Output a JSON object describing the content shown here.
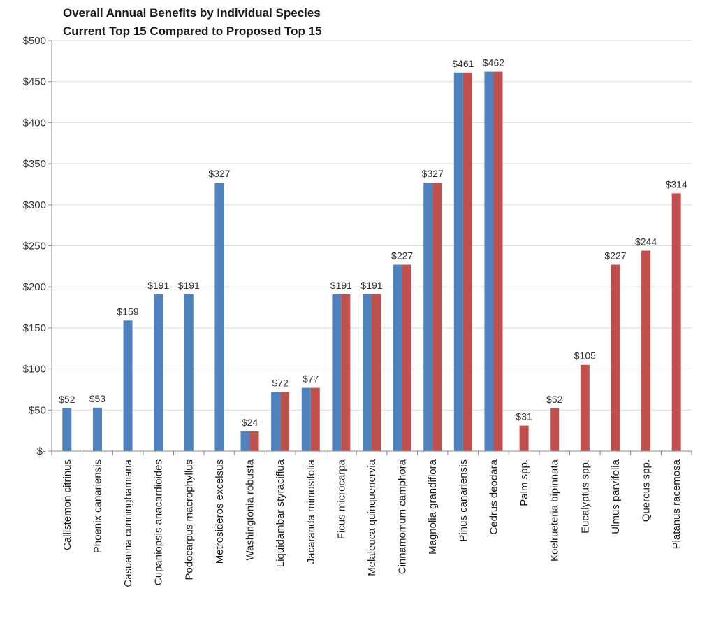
{
  "chart_data": {
    "type": "bar",
    "title": "Overall Annual Benefits by Individual Species",
    "subtitle": "Current Top 15 Compared to Proposed Top 15",
    "xlabel": "",
    "ylabel": "",
    "ylim": [
      0,
      500
    ],
    "yticks": [
      {
        "value": 0,
        "label": "$-"
      },
      {
        "value": 50,
        "label": "$50"
      },
      {
        "value": 100,
        "label": "$100"
      },
      {
        "value": 150,
        "label": "$150"
      },
      {
        "value": 200,
        "label": "$200"
      },
      {
        "value": 250,
        "label": "$250"
      },
      {
        "value": 300,
        "label": "$300"
      },
      {
        "value": 350,
        "label": "$350"
      },
      {
        "value": 400,
        "label": "$400"
      },
      {
        "value": 450,
        "label": "$450"
      },
      {
        "value": 500,
        "label": "$500"
      }
    ],
    "grid": true,
    "legend": "none",
    "categories": [
      "Callistemon citrinus",
      "Phoenix canariensis",
      "Casuarina cunninghamiana",
      "Cupaniopsis anacardioides",
      "Podocarpus macrophyllus",
      "Metrosideros excelsus",
      "Washingtonia robusta",
      "Liquidambar styraciflua",
      "Jacaranda mimosifolia",
      "Ficus microcarpa",
      "Melaleuca quinquenervia",
      "Cinnamomum camphora",
      "Magnolia grandiflora",
      "Pinus canariensis",
      "Cedrus deodara",
      "Palm spp.",
      "Koelrueteria bipinnata",
      "Eucalyptus spp.",
      "Ulmus parvifolia",
      "Quercus spp.",
      "Platanus racemosa"
    ],
    "series": [
      {
        "color": "#4f81bd",
        "values": [
          52,
          53,
          159,
          191,
          191,
          327,
          24,
          72,
          77,
          191,
          191,
          227,
          327,
          461,
          462,
          null,
          null,
          null,
          null,
          null,
          null
        ]
      },
      {
        "color": "#c0504d",
        "values": [
          null,
          null,
          null,
          null,
          null,
          null,
          24,
          72,
          77,
          191,
          191,
          227,
          327,
          461,
          462,
          31,
          52,
          105,
          227,
          244,
          314
        ]
      }
    ],
    "data_labels": [
      "$52",
      "$53",
      "$159",
      "$191",
      "$191",
      "$327",
      "$24",
      "$72",
      "$77",
      "$191",
      "$191",
      "$227",
      "$327",
      "$461",
      "$462",
      "$31",
      "$52",
      "$105",
      "$227",
      "$244",
      "$314"
    ]
  }
}
